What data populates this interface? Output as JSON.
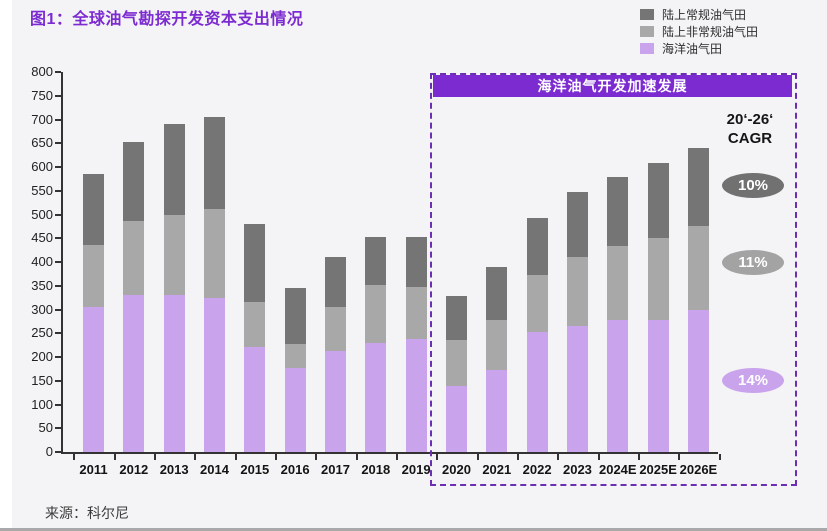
{
  "header": {
    "title": "图1：全球油气勘探开发资本支出情况"
  },
  "legend": [
    {
      "label": "陆上常规油气田",
      "color": "#757575"
    },
    {
      "label": "陆上非常规油气田",
      "color": "#a8a8a8"
    },
    {
      "label": "海洋油气田",
      "color": "#c9a4ec"
    }
  ],
  "annotation_box": {
    "title": "海洋油气开发加速发展",
    "border_color": "#6b2fb4",
    "fill_color": "#7c2bd1"
  },
  "cagr": {
    "line1": "20‘-26‘",
    "line2": "CAGR",
    "bubbles": [
      {
        "label": "10%",
        "color": "#717171",
        "series": "陆上常规油气田"
      },
      {
        "label": "11%",
        "color": "#a3a3a3",
        "series": "陆上非常规油气田"
      },
      {
        "label": "14%",
        "color": "#c9a4ec",
        "series": "海洋油气田"
      }
    ]
  },
  "source": {
    "text": "来源：科尔尼"
  },
  "colors": {
    "accent_purple": "#7c2bd1",
    "background": "#f4f3f5",
    "axis": "#333333"
  },
  "chart_data": {
    "type": "bar",
    "stacked": true,
    "title": "全球油气勘探开发资本支出情况",
    "categories": [
      "2011",
      "2012",
      "2013",
      "2014",
      "2015",
      "2016",
      "2017",
      "2018",
      "2019",
      "2020",
      "2021",
      "2022",
      "2023",
      "2024E",
      "2025E",
      "2026E"
    ],
    "series": [
      {
        "name": "海洋油气田",
        "color": "#c9a4ec",
        "values": [
          305,
          330,
          330,
          325,
          222,
          177,
          212,
          230,
          237,
          140,
          173,
          253,
          265,
          277,
          278,
          300
        ]
      },
      {
        "name": "陆上非常规油气田",
        "color": "#a8a8a8",
        "values": [
          130,
          157,
          170,
          187,
          93,
          51,
          93,
          122,
          110,
          95,
          105,
          120,
          145,
          156,
          172,
          175
        ]
      },
      {
        "name": "陆上常规油气田",
        "color": "#757575",
        "values": [
          150,
          166,
          190,
          193,
          165,
          117,
          105,
          100,
          105,
          93,
          112,
          120,
          138,
          147,
          158,
          165
        ]
      }
    ],
    "totals": [
      585,
      653,
      690,
      705,
      480,
      345,
      410,
      452,
      452,
      328,
      390,
      493,
      548,
      580,
      608,
      640
    ],
    "xlabel": "",
    "ylabel": "",
    "ylim": [
      0,
      800
    ],
    "ytick_step": 50,
    "grid": false,
    "legend_position": "top-right",
    "highlight_region": {
      "categories": [
        "2020",
        "2021",
        "2022",
        "2023",
        "2024E",
        "2025E",
        "2026E"
      ],
      "label": "海洋油气开发加速发展"
    }
  }
}
